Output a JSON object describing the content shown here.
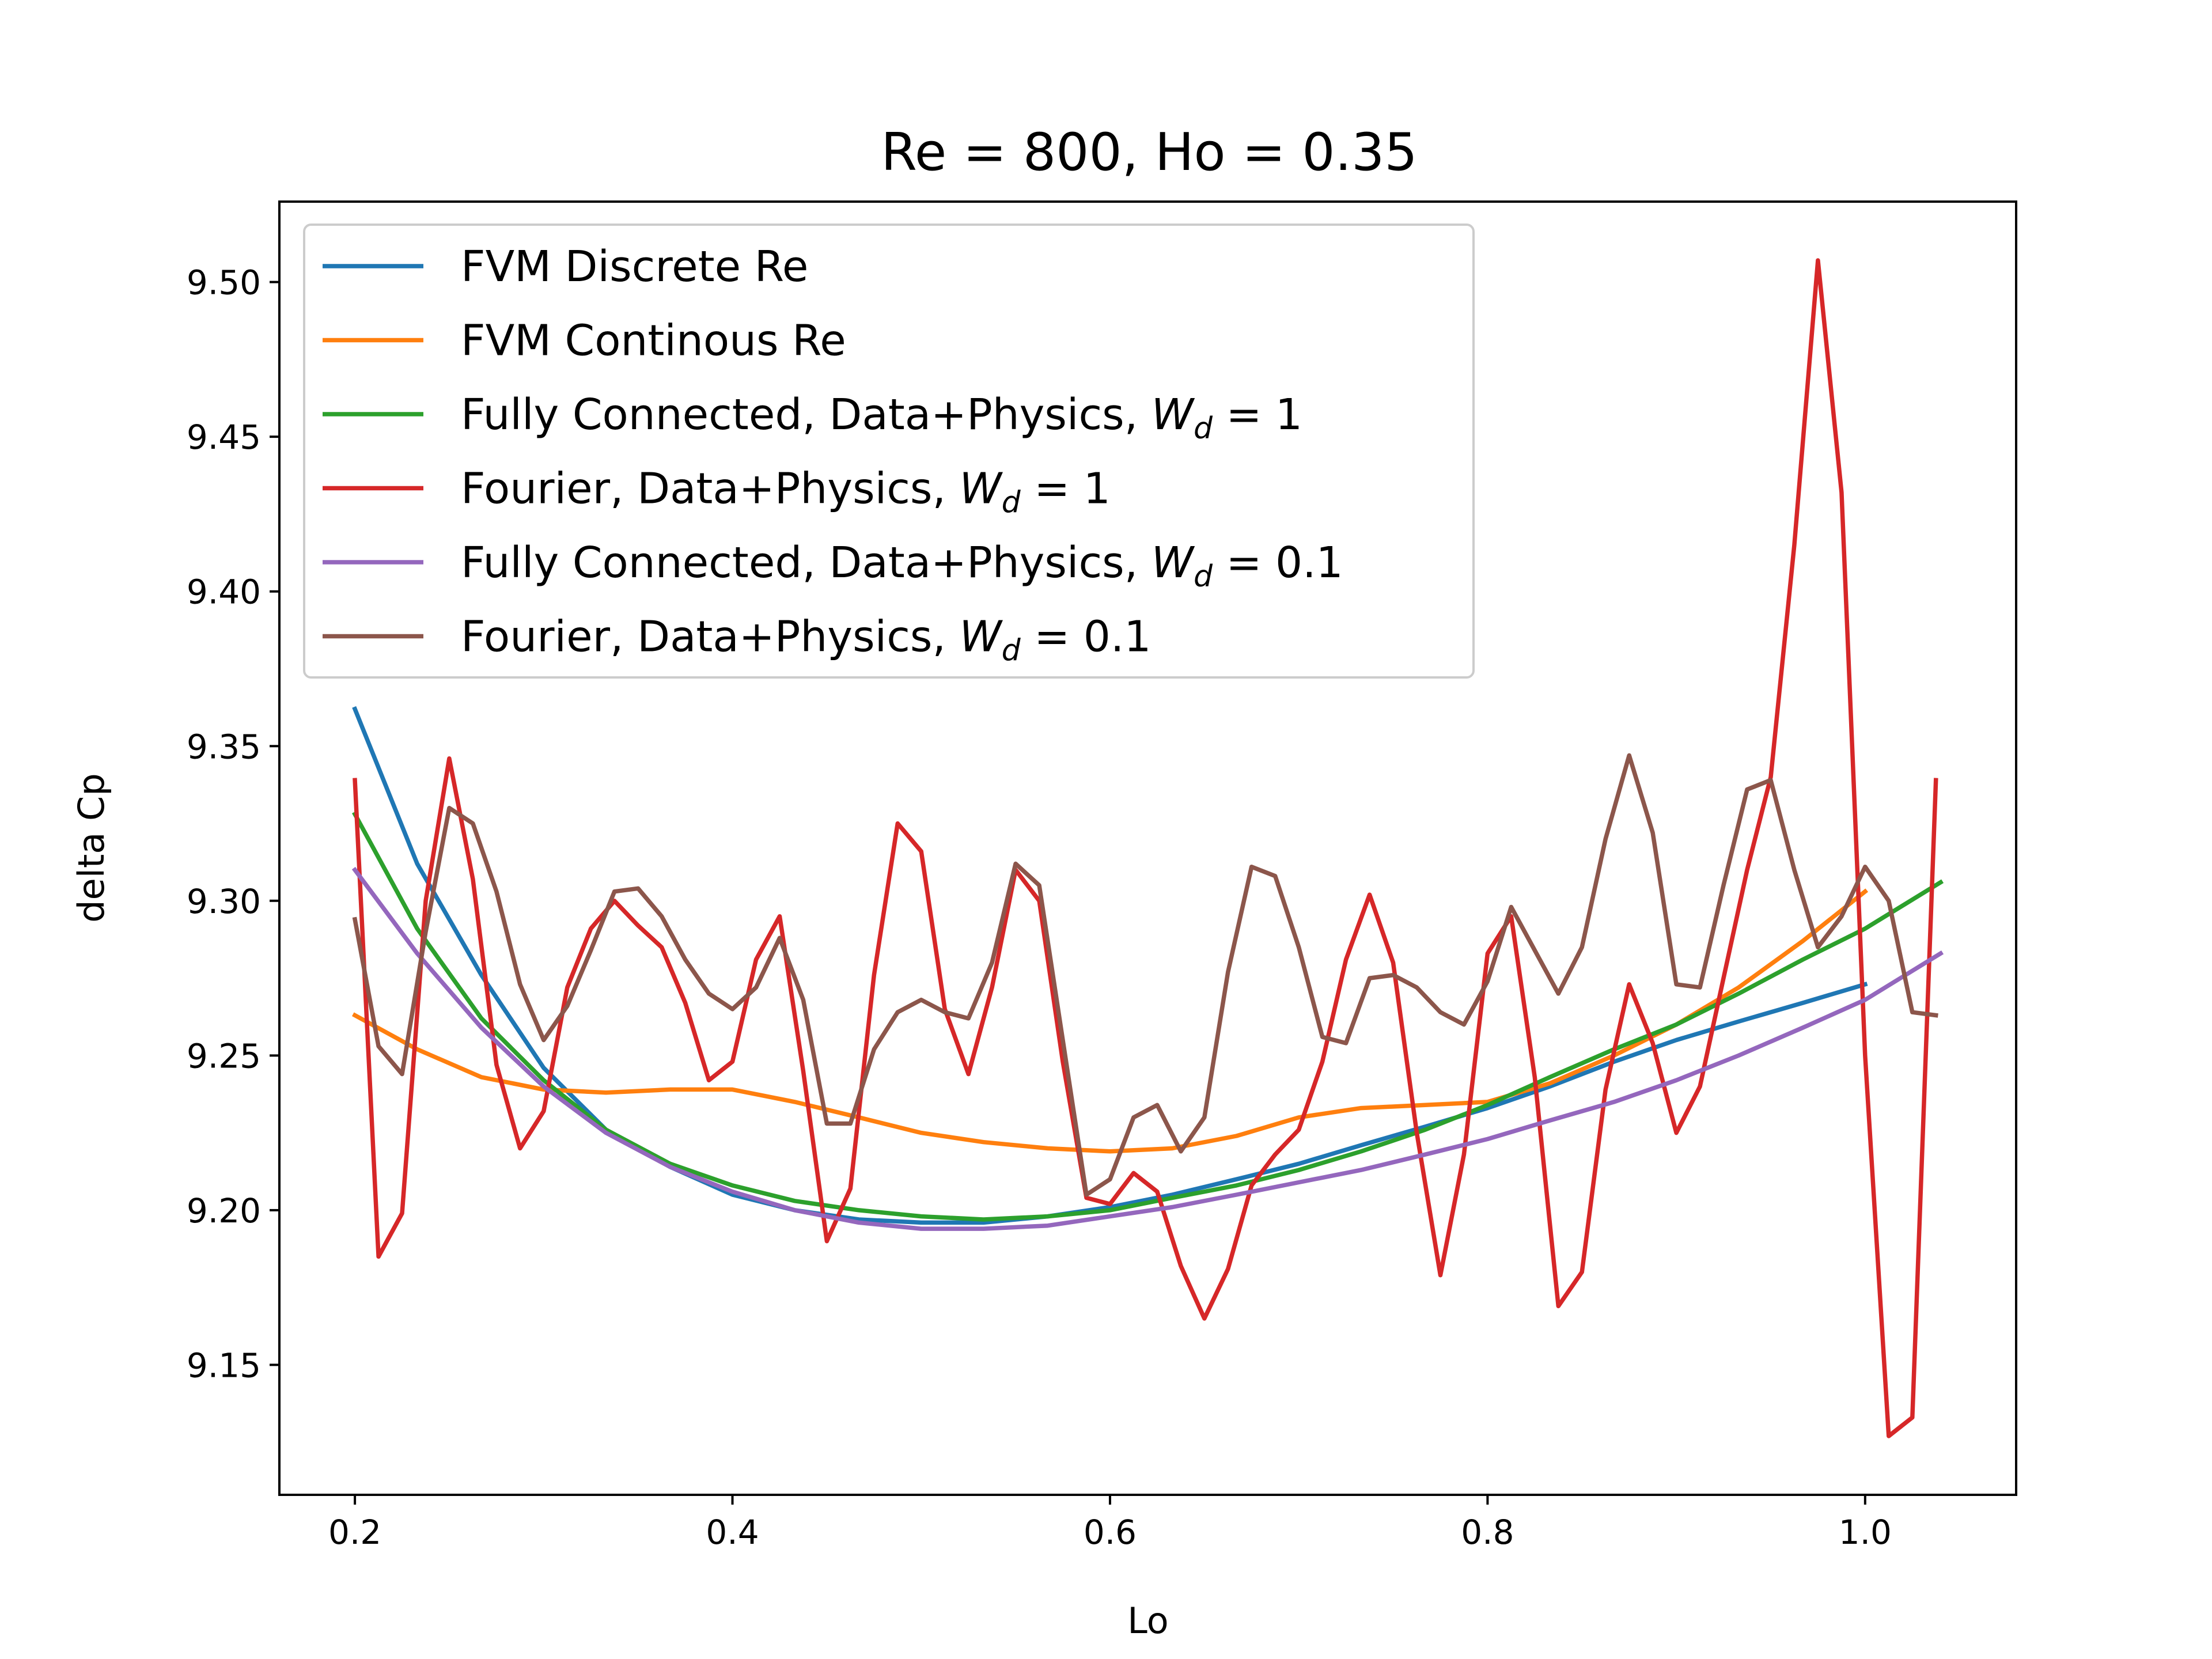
{
  "chart_data": {
    "type": "line",
    "title": "Re = 800, Ho = 0.35",
    "xlabel": "Lo",
    "ylabel": "delta Cp",
    "xlim": [
      0.16,
      1.08
    ],
    "ylim": [
      9.108,
      9.526
    ],
    "xticks": [
      0.2,
      0.4,
      0.6,
      0.8,
      1.0
    ],
    "xtick_labels": [
      "0.2",
      "0.4",
      "0.6",
      "0.8",
      "1.0"
    ],
    "yticks": [
      9.15,
      9.2,
      9.25,
      9.3,
      9.35,
      9.4,
      9.45,
      9.5
    ],
    "ytick_labels": [
      "9.15",
      "9.20",
      "9.25",
      "9.30",
      "9.35",
      "9.40",
      "9.45",
      "9.50"
    ],
    "grid": false,
    "legend_position": "top-left",
    "series": [
      {
        "name": "FVM Discrete Re",
        "legend_parts": [
          "FVM Discrete Re"
        ],
        "color": "#1f77b4",
        "x": [
          0.2,
          0.233,
          0.267,
          0.3,
          0.333,
          0.367,
          0.4,
          0.433,
          0.467,
          0.5,
          0.533,
          0.567,
          0.6,
          0.633,
          0.667,
          0.7,
          0.733,
          0.767,
          0.8,
          0.833,
          0.867,
          0.9,
          0.933,
          0.967,
          1.0
        ],
        "y": [
          9.362,
          9.312,
          9.276,
          9.246,
          9.226,
          9.214,
          9.205,
          9.2,
          9.197,
          9.196,
          9.196,
          9.198,
          9.201,
          9.205,
          9.21,
          9.215,
          9.221,
          9.227,
          9.233,
          9.24,
          9.248,
          9.255,
          9.261,
          9.267,
          9.273
        ]
      },
      {
        "name": "FVM Continous Re",
        "legend_parts": [
          "FVM Continous Re"
        ],
        "color": "#ff7f0e",
        "x": [
          0.2,
          0.233,
          0.267,
          0.3,
          0.333,
          0.367,
          0.4,
          0.433,
          0.467,
          0.5,
          0.533,
          0.567,
          0.6,
          0.633,
          0.667,
          0.7,
          0.733,
          0.767,
          0.8,
          0.833,
          0.867,
          0.9,
          0.933,
          0.967,
          1.0
        ],
        "y": [
          9.263,
          9.252,
          9.243,
          9.239,
          9.238,
          9.239,
          9.239,
          9.235,
          9.23,
          9.225,
          9.222,
          9.22,
          9.219,
          9.22,
          9.224,
          9.23,
          9.233,
          9.234,
          9.235,
          9.241,
          9.25,
          9.26,
          9.272,
          9.287,
          9.303
        ]
      },
      {
        "name": "Fully Connected, Data+Physics, W_d = 1",
        "legend_parts": [
          "Fully Connected, Data+Physics, ",
          "W",
          "d",
          " = 1"
        ],
        "color": "#2ca02c",
        "x": [
          0.2,
          0.233,
          0.267,
          0.3,
          0.333,
          0.367,
          0.4,
          0.433,
          0.467,
          0.5,
          0.533,
          0.567,
          0.6,
          0.633,
          0.667,
          0.7,
          0.733,
          0.767,
          0.8,
          0.833,
          0.867,
          0.9,
          0.933,
          0.967,
          1.0,
          1.04
        ],
        "y": [
          9.328,
          9.291,
          9.262,
          9.242,
          9.226,
          9.215,
          9.208,
          9.203,
          9.2,
          9.198,
          9.197,
          9.198,
          9.2,
          9.204,
          9.208,
          9.213,
          9.219,
          9.226,
          9.234,
          9.243,
          9.252,
          9.26,
          9.27,
          9.281,
          9.291,
          9.306
        ]
      },
      {
        "name": "Fourier, Data+Physics, W_d = 1",
        "legend_parts": [
          "Fourier, Data+Physics, ",
          "W",
          "d",
          " = 1"
        ],
        "color": "#d62728",
        "x": [
          0.2,
          0.2125,
          0.225,
          0.2375,
          0.25,
          0.2625,
          0.275,
          0.2875,
          0.3,
          0.3125,
          0.325,
          0.3375,
          0.35,
          0.3625,
          0.375,
          0.3875,
          0.4,
          0.4125,
          0.425,
          0.4375,
          0.45,
          0.4625,
          0.475,
          0.4875,
          0.5,
          0.5125,
          0.525,
          0.5375,
          0.55,
          0.5625,
          0.575,
          0.5875,
          0.6,
          0.6125,
          0.625,
          0.6375,
          0.65,
          0.6625,
          0.675,
          0.6875,
          0.7,
          0.7125,
          0.725,
          0.7375,
          0.75,
          0.7625,
          0.775,
          0.7875,
          0.8,
          0.8125,
          0.825,
          0.8375,
          0.85,
          0.8625,
          0.875,
          0.8875,
          0.9,
          0.9125,
          0.925,
          0.9375,
          0.95,
          0.9625,
          0.975,
          0.9875,
          1.0,
          1.0125,
          1.025,
          1.0375
        ],
        "y": [
          9.339,
          9.185,
          9.199,
          9.3,
          9.346,
          9.307,
          9.247,
          9.22,
          9.232,
          9.272,
          9.291,
          9.3,
          9.292,
          9.285,
          9.267,
          9.242,
          9.248,
          9.281,
          9.295,
          9.245,
          9.19,
          9.207,
          9.276,
          9.325,
          9.316,
          9.265,
          9.244,
          9.272,
          9.31,
          9.3,
          9.248,
          9.204,
          9.202,
          9.212,
          9.206,
          9.182,
          9.165,
          9.181,
          9.208,
          9.218,
          9.226,
          9.248,
          9.281,
          9.302,
          9.28,
          9.225,
          9.179,
          9.218,
          9.283,
          9.295,
          9.243,
          9.169,
          9.18,
          9.239,
          9.273,
          9.254,
          9.225,
          9.24,
          9.275,
          9.31,
          9.34,
          9.415,
          9.507,
          9.432,
          9.25,
          9.127,
          9.133,
          9.339
        ]
      },
      {
        "name": "Fully Connected, Data+Physics, W_d = 0.1",
        "legend_parts": [
          "Fully Connected, Data+Physics, ",
          "W",
          "d",
          " = 0.1"
        ],
        "color": "#9467bd",
        "x": [
          0.2,
          0.233,
          0.267,
          0.3,
          0.333,
          0.367,
          0.4,
          0.433,
          0.467,
          0.5,
          0.533,
          0.567,
          0.6,
          0.633,
          0.667,
          0.7,
          0.733,
          0.767,
          0.8,
          0.833,
          0.867,
          0.9,
          0.933,
          0.967,
          1.0,
          1.04
        ],
        "y": [
          9.31,
          9.283,
          9.259,
          9.24,
          9.225,
          9.214,
          9.206,
          9.2,
          9.196,
          9.194,
          9.194,
          9.195,
          9.198,
          9.201,
          9.205,
          9.209,
          9.213,
          9.218,
          9.223,
          9.229,
          9.235,
          9.242,
          9.25,
          9.259,
          9.268,
          9.283
        ]
      },
      {
        "name": "Fourier, Data+Physics, W_d = 0.1",
        "legend_parts": [
          "Fourier, Data+Physics, ",
          "W",
          "d",
          " = 0.1"
        ],
        "color": "#8c564b",
        "x": [
          0.2,
          0.2125,
          0.225,
          0.2375,
          0.25,
          0.2625,
          0.275,
          0.2875,
          0.3,
          0.3125,
          0.325,
          0.3375,
          0.35,
          0.3625,
          0.375,
          0.3875,
          0.4,
          0.4125,
          0.425,
          0.4375,
          0.45,
          0.4625,
          0.475,
          0.4875,
          0.5,
          0.5125,
          0.525,
          0.5375,
          0.55,
          0.5625,
          0.575,
          0.5875,
          0.6,
          0.6125,
          0.625,
          0.6375,
          0.65,
          0.6625,
          0.675,
          0.6875,
          0.7,
          0.7125,
          0.725,
          0.7375,
          0.75,
          0.7625,
          0.775,
          0.7875,
          0.8,
          0.8125,
          0.825,
          0.8375,
          0.85,
          0.8625,
          0.875,
          0.8875,
          0.9,
          0.9125,
          0.925,
          0.9375,
          0.95,
          0.9625,
          0.975,
          0.9875,
          1.0,
          1.0125,
          1.025,
          1.0375
        ],
        "y": [
          9.294,
          9.253,
          9.244,
          9.29,
          9.33,
          9.325,
          9.303,
          9.273,
          9.255,
          9.266,
          9.284,
          9.303,
          9.304,
          9.295,
          9.281,
          9.27,
          9.265,
          9.272,
          9.288,
          9.268,
          9.228,
          9.228,
          9.252,
          9.264,
          9.268,
          9.264,
          9.262,
          9.28,
          9.312,
          9.305,
          9.255,
          9.205,
          9.21,
          9.23,
          9.234,
          9.219,
          9.23,
          9.277,
          9.311,
          9.308,
          9.285,
          9.256,
          9.254,
          9.275,
          9.276,
          9.272,
          9.264,
          9.26,
          9.274,
          9.298,
          9.284,
          9.27,
          9.285,
          9.32,
          9.347,
          9.322,
          9.273,
          9.272,
          9.305,
          9.336,
          9.339,
          9.31,
          9.285,
          9.295,
          9.311,
          9.3,
          9.264,
          9.263
        ]
      }
    ]
  }
}
